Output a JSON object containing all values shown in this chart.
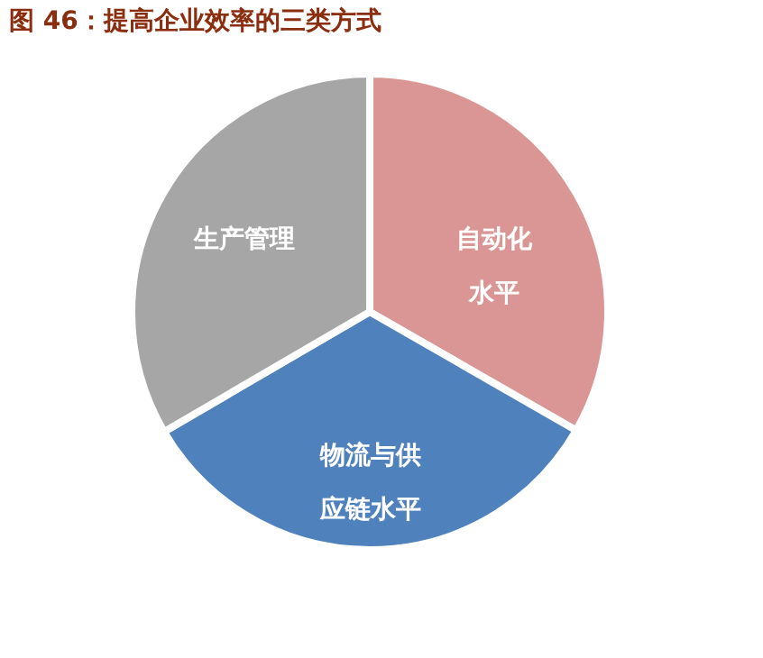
{
  "chart_data": {
    "type": "pie",
    "title": "图 46：提高企业效率的三类方式",
    "categories": [
      "自动化水平",
      "物流与供应链水平",
      "生产管理"
    ],
    "values": [
      33.3,
      33.3,
      33.4
    ],
    "colors": [
      "#d99694",
      "#4f81bd",
      "#a6a6a6"
    ],
    "legend": false
  }
}
